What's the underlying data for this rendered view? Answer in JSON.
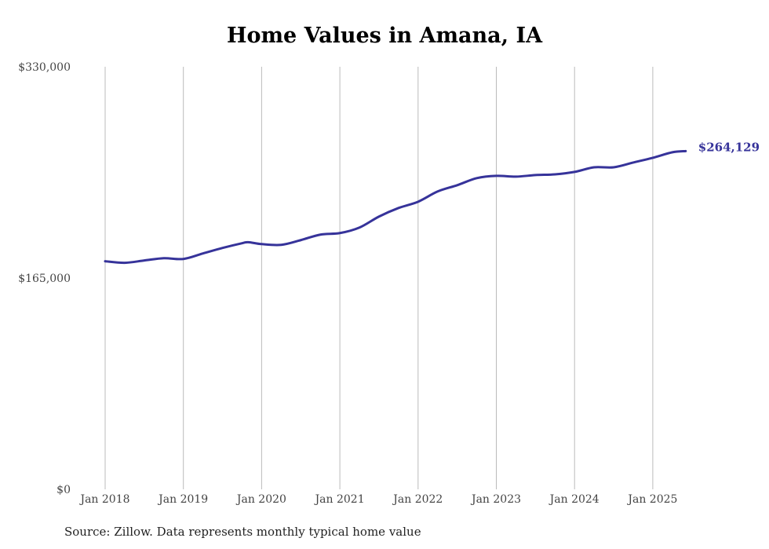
{
  "chart_data": {
    "type": "line",
    "title": "Home Values in Amana, IA",
    "xlabel": "",
    "ylabel": "",
    "ylim": [
      0,
      330000
    ],
    "y_ticks": [
      {
        "value": 0,
        "label": "$0"
      },
      {
        "value": 165000,
        "label": "$165,000"
      },
      {
        "value": 330000,
        "label": "$330,000"
      }
    ],
    "x_ticks": [
      {
        "value": 2018,
        "label": "Jan 2018"
      },
      {
        "value": 2019,
        "label": "Jan 2019"
      },
      {
        "value": 2020,
        "label": "Jan 2020"
      },
      {
        "value": 2021,
        "label": "Jan 2021"
      },
      {
        "value": 2022,
        "label": "Jan 2022"
      },
      {
        "value": 2023,
        "label": "Jan 2023"
      },
      {
        "value": 2024,
        "label": "Jan 2024"
      },
      {
        "value": 2025,
        "label": "Jan 2025"
      }
    ],
    "xlim": [
      2018,
      2025.42
    ],
    "grid": "vertical",
    "series": [
      {
        "name": "Typical home value",
        "color": "#36339a",
        "x": [
          2018,
          2018.25,
          2018.5,
          2018.75,
          2019,
          2019.25,
          2019.5,
          2019.75,
          2019.83,
          2020,
          2020.25,
          2020.5,
          2020.75,
          2021,
          2021.25,
          2021.5,
          2021.75,
          2022,
          2022.25,
          2022.5,
          2022.75,
          2023,
          2023.25,
          2023.5,
          2023.75,
          2024,
          2024.25,
          2024.5,
          2024.75,
          2025,
          2025.25,
          2025.42
        ],
        "values": [
          178100,
          176900,
          178700,
          180500,
          179900,
          184200,
          188500,
          192200,
          193000,
          191500,
          190900,
          194600,
          198900,
          200100,
          204400,
          213000,
          219700,
          224600,
          232600,
          237500,
          243000,
          244800,
          244200,
          245400,
          246000,
          247900,
          251500,
          251500,
          255200,
          258900,
          263200,
          264129
        ]
      }
    ],
    "end_label": "$264,129"
  },
  "source": "Source: Zillow. Data represents monthly typical home value"
}
